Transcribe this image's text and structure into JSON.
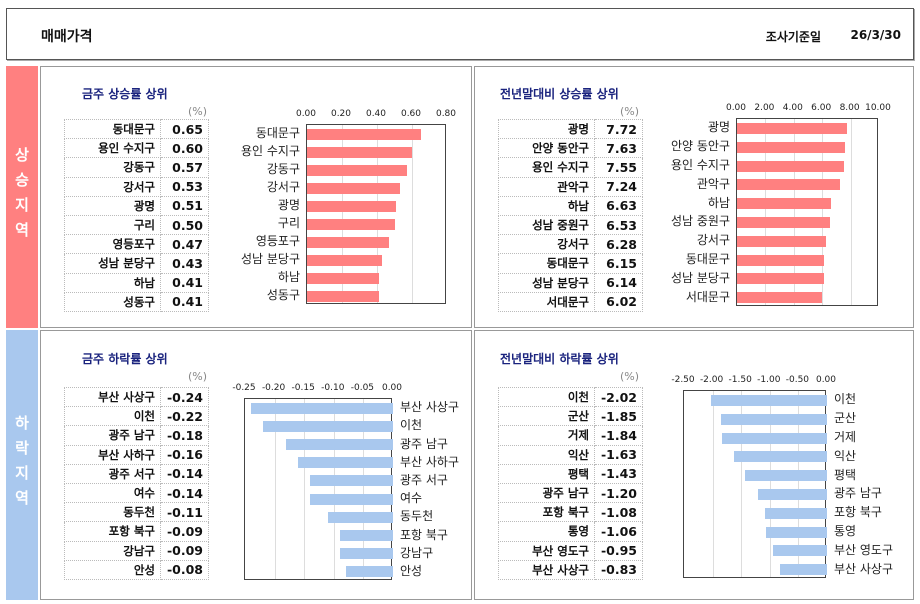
{
  "header": {
    "title": "매매가격",
    "date_label": "조사기준일",
    "date": "26/3/30"
  },
  "sections": {
    "rise": "상승지역",
    "fall": "하락지역"
  },
  "colors": {
    "rise": "#ff8080",
    "fall": "#a9c8ee"
  },
  "panels": [
    {
      "title": "금주 상승률 상위",
      "unit": "(%)",
      "rows": [
        {
          "name": "동대문구",
          "value": "0.65"
        },
        {
          "name": "용인 수지구",
          "value": "0.60"
        },
        {
          "name": "강동구",
          "value": "0.57"
        },
        {
          "name": "강서구",
          "value": "0.53"
        },
        {
          "name": "광명",
          "value": "0.51"
        },
        {
          "name": "구리",
          "value": "0.50"
        },
        {
          "name": "영등포구",
          "value": "0.47"
        },
        {
          "name": "성남 분당구",
          "value": "0.43"
        },
        {
          "name": "하남",
          "value": "0.41"
        },
        {
          "name": "성동구",
          "value": "0.41"
        }
      ]
    },
    {
      "title": "전년말대비 상승률 상위",
      "unit": "(%)",
      "rows": [
        {
          "name": "광명",
          "value": "7.72"
        },
        {
          "name": "안양 동안구",
          "value": "7.63"
        },
        {
          "name": "용인 수지구",
          "value": "7.55"
        },
        {
          "name": "관악구",
          "value": "7.24"
        },
        {
          "name": "하남",
          "value": "6.63"
        },
        {
          "name": "성남 중원구",
          "value": "6.53"
        },
        {
          "name": "강서구",
          "value": "6.28"
        },
        {
          "name": "동대문구",
          "value": "6.15"
        },
        {
          "name": "성남 분당구",
          "value": "6.14"
        },
        {
          "name": "서대문구",
          "value": "6.02"
        }
      ]
    },
    {
      "title": "금주 하락률 상위",
      "unit": "(%)",
      "rows": [
        {
          "name": "부산 사상구",
          "value": "-0.24"
        },
        {
          "name": "이천",
          "value": "-0.22"
        },
        {
          "name": "광주 남구",
          "value": "-0.18"
        },
        {
          "name": "부산 사하구",
          "value": "-0.16"
        },
        {
          "name": "광주 서구",
          "value": "-0.14"
        },
        {
          "name": "여수",
          "value": "-0.14"
        },
        {
          "name": "동두천",
          "value": "-0.11"
        },
        {
          "name": "포항 북구",
          "value": "-0.09"
        },
        {
          "name": "강남구",
          "value": "-0.09"
        },
        {
          "name": "안성",
          "value": "-0.08"
        }
      ]
    },
    {
      "title": "전년말대비 하락률 상위",
      "unit": "(%)",
      "rows": [
        {
          "name": "이천",
          "value": "-2.02"
        },
        {
          "name": "군산",
          "value": "-1.85"
        },
        {
          "name": "거제",
          "value": "-1.84"
        },
        {
          "name": "익산",
          "value": "-1.63"
        },
        {
          "name": "평택",
          "value": "-1.43"
        },
        {
          "name": "광주 남구",
          "value": "-1.20"
        },
        {
          "name": "포항 북구",
          "value": "-1.08"
        },
        {
          "name": "통영",
          "value": "-1.06"
        },
        {
          "name": "부산 영도구",
          "value": "-0.95"
        },
        {
          "name": "부산 사상구",
          "value": "-0.83"
        }
      ]
    }
  ],
  "chart_data": [
    {
      "type": "bar",
      "orientation": "horizontal",
      "categories": [
        "동대문구",
        "용인 수지구",
        "강동구",
        "강서구",
        "광명",
        "구리",
        "영등포구",
        "성남 분당구",
        "하남",
        "성동구"
      ],
      "values": [
        0.65,
        0.6,
        0.57,
        0.53,
        0.51,
        0.5,
        0.47,
        0.43,
        0.41,
        0.41
      ],
      "xlim": [
        0,
        0.8
      ],
      "ticks": [
        "0.00",
        "0.20",
        "0.40",
        "0.60",
        "0.80"
      ]
    },
    {
      "type": "bar",
      "orientation": "horizontal",
      "categories": [
        "광명",
        "안양 동안구",
        "용인 수지구",
        "관악구",
        "하남",
        "성남 중원구",
        "강서구",
        "동대문구",
        "성남 분당구",
        "서대문구"
      ],
      "values": [
        7.72,
        7.63,
        7.55,
        7.24,
        6.63,
        6.53,
        6.28,
        6.15,
        6.14,
        6.02
      ],
      "xlim": [
        0,
        10
      ],
      "ticks": [
        "0.00",
        "2.00",
        "4.00",
        "6.00",
        "8.00",
        "10.00"
      ]
    },
    {
      "type": "bar",
      "orientation": "horizontal",
      "categories": [
        "부산 사상구",
        "이천",
        "광주 남구",
        "부산 사하구",
        "광주 서구",
        "여수",
        "동두천",
        "포항 북구",
        "강남구",
        "안성"
      ],
      "values": [
        -0.24,
        -0.22,
        -0.18,
        -0.16,
        -0.14,
        -0.14,
        -0.11,
        -0.09,
        -0.09,
        -0.08
      ],
      "xlim": [
        -0.25,
        0
      ],
      "ticks": [
        "-0.25",
        "-0.20",
        "-0.15",
        "-0.10",
        "-0.05",
        "0.00"
      ]
    },
    {
      "type": "bar",
      "orientation": "horizontal",
      "categories": [
        "이천",
        "군산",
        "거제",
        "익산",
        "평택",
        "광주 남구",
        "포항 북구",
        "통영",
        "부산 영도구",
        "부산 사상구"
      ],
      "values": [
        -2.02,
        -1.85,
        -1.84,
        -1.63,
        -1.43,
        -1.2,
        -1.08,
        -1.06,
        -0.95,
        -0.83
      ],
      "xlim": [
        -2.5,
        0
      ],
      "ticks": [
        "-2.50",
        "-2.00",
        "-1.50",
        "-1.00",
        "-0.50",
        "0.00"
      ]
    }
  ]
}
